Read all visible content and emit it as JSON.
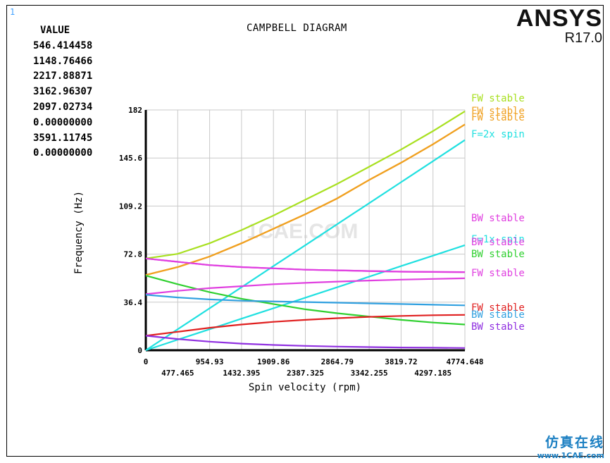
{
  "corner_label": "1",
  "value_panel": {
    "header": "VALUE",
    "values": [
      "546.414458",
      "1148.76466",
      "2217.88871",
      "3162.96307",
      "2097.02734",
      "0.00000000",
      "3591.11745",
      "0.00000000"
    ]
  },
  "brand": {
    "name": "ANSYS",
    "version": "R17.0"
  },
  "watermark": {
    "cn": "仿真在线",
    "url": "www.1CAE.com",
    "ghost": "1CAE.COM"
  },
  "chart_data": {
    "type": "line",
    "title": "CAMPBELL DIAGRAM",
    "xlabel": "Spin velocity (rpm)",
    "ylabel": "Frequency (Hz)",
    "xlim": [
      0,
      4774.648
    ],
    "ylim": [
      0,
      182
    ],
    "grid": true,
    "x_ticks": [
      "0",
      "477.465",
      "954.93",
      "1432.395",
      "1909.86",
      "2387.325",
      "2864.79",
      "3342.255",
      "3819.72",
      "4297.185",
      "4774.648"
    ],
    "y_ticks": [
      "0",
      "36.4",
      "72.8",
      "109.2",
      "145.6",
      "182"
    ],
    "x": [
      0,
      477.465,
      954.93,
      1432.395,
      1909.86,
      2387.325,
      2864.79,
      3342.255,
      3819.72,
      4297.185,
      4774.648
    ],
    "series": [
      {
        "name": "FW stable",
        "color": "#a8e020",
        "values": [
          69.5,
          73,
          81,
          91,
          102,
          114,
          126,
          139,
          152,
          166,
          181
        ]
      },
      {
        "name": "FW stable",
        "color": "#f0a020",
        "values": [
          57,
          63,
          71,
          81,
          92,
          103,
          115,
          129,
          142,
          156,
          171
        ]
      },
      {
        "name": "FW stable",
        "color": "#f0a020",
        "values": [
          57,
          63,
          71,
          81,
          92,
          103,
          115,
          129,
          142,
          156,
          171
        ]
      },
      {
        "name": "F=2x spin",
        "color": "#20e0e0",
        "values": [
          0,
          15.9,
          31.8,
          47.7,
          63.7,
          79.6,
          95.5,
          111.4,
          127.3,
          143.2,
          159.2
        ]
      },
      {
        "name": "BW stable",
        "color": "#e040e0",
        "values": [
          69.5,
          67,
          64.5,
          63,
          62,
          61,
          60.5,
          60,
          59.5,
          59.3,
          59.2
        ]
      },
      {
        "name": "F=1x spin",
        "color": "#20e0e0",
        "values": [
          0,
          8,
          15.9,
          23.9,
          31.8,
          39.8,
          47.7,
          55.7,
          63.7,
          71.6,
          79.6
        ]
      },
      {
        "name": "BW stable",
        "color": "#e040e0",
        "values": [
          69.5,
          67,
          64.5,
          63,
          62,
          61,
          60.5,
          60,
          59.5,
          59.3,
          59.2
        ]
      },
      {
        "name": "BW stable",
        "color": "#30d030",
        "values": [
          56.5,
          50,
          44,
          39,
          35,
          31,
          28,
          25.5,
          23,
          21,
          19.5
        ]
      },
      {
        "name": "FW stable",
        "color": "#e040e0",
        "values": [
          42.5,
          45,
          47,
          48.5,
          50,
          51,
          52,
          52.8,
          53.5,
          54,
          54.5
        ]
      },
      {
        "name": "FW stable",
        "color": "#e02020",
        "values": [
          11,
          14,
          17,
          19.5,
          21.5,
          23,
          24.3,
          25.3,
          26,
          26.5,
          26.8
        ]
      },
      {
        "name": "BW stable",
        "color": "#30a0e0",
        "values": [
          42,
          40,
          38.5,
          37.5,
          37,
          36.5,
          36,
          35.5,
          35,
          34.5,
          34
        ]
      },
      {
        "name": "BW stable",
        "color": "#9030e0",
        "values": [
          11,
          8.5,
          6.5,
          5,
          4,
          3.3,
          2.8,
          2.4,
          2.1,
          1.9,
          1.7
        ]
      }
    ]
  }
}
